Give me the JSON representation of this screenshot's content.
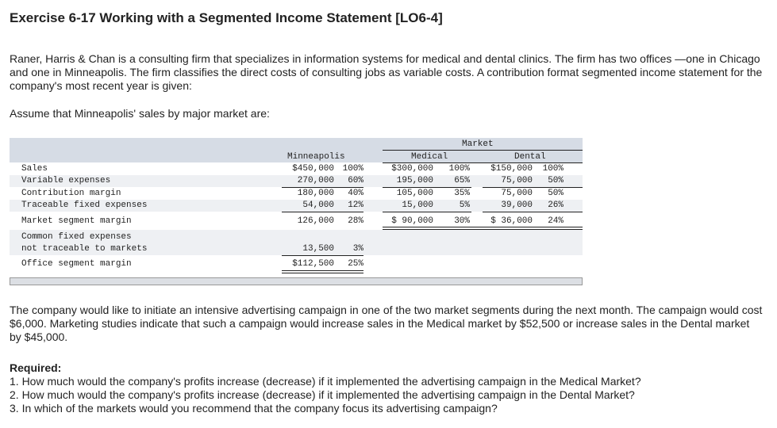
{
  "title": "Exercise 6-17 Working with a Segmented Income Statement [LO6-4]",
  "intro": "Raner, Harris & Chan is a consulting firm that specializes in information systems for medical and dental clinics. The firm has two offices —one in Chicago and one in Minneapolis. The firm classifies the direct costs of consulting jobs as variable costs. A contribution format segmented income statement for the company's most recent year is given:",
  "assume": "Assume that Minneapolis' sales by major market are:",
  "table": {
    "market_header": "Market",
    "col_minneapolis": "Minneapolis",
    "col_medical": "Medical",
    "col_dental": "Dental",
    "rows": [
      {
        "label": "Sales",
        "m": "$450,000",
        "mp": "100%",
        "med": "$300,000",
        "medp": "100%",
        "d": "$150,000",
        "dp": "100%"
      },
      {
        "label": "Variable expenses",
        "m": "270,000",
        "mp": "60%",
        "med": "195,000",
        "medp": "65%",
        "d": "75,000",
        "dp": "50%"
      },
      {
        "label": "Contribution margin",
        "m": "180,000",
        "mp": "40%",
        "med": "105,000",
        "medp": "35%",
        "d": "75,000",
        "dp": "50%"
      },
      {
        "label": "Traceable fixed expenses",
        "m": "54,000",
        "mp": "12%",
        "med": "15,000",
        "medp": "5%",
        "d": "39,000",
        "dp": "26%"
      },
      {
        "label": "Market segment margin",
        "m": "126,000",
        "mp": "28%",
        "med": "$ 90,000",
        "medp": "30%",
        "d": "$ 36,000",
        "dp": "24%"
      },
      {
        "label": "Common fixed expenses",
        "label2": "not traceable to markets",
        "m": "13,500",
        "mp": "3%"
      },
      {
        "label": "Office segment margin",
        "m": "$112,500",
        "mp": "25%"
      }
    ]
  },
  "campaign": "The company would like to initiate an intensive advertising campaign in one of the two market segments during the next month. The campaign would cost $6,000. Marketing studies indicate that such a campaign would increase sales in the Medical market by $52,500 or increase sales in the Dental market by $45,000.",
  "required": {
    "heading": "Required:",
    "items": [
      "1. How much would the company's profits increase (decrease) if it implemented the advertising campaign in the Medical Market?",
      "2. How much would the company's profits increase (decrease) if it implemented the advertising campaign in the Dental Market?",
      "3. In which of the markets would you recommend that the company focus its advertising campaign?"
    ]
  }
}
